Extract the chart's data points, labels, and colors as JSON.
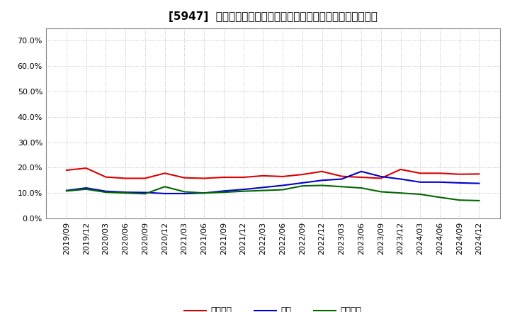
{
  "title": "[5947]  売上債権、在庫、買入債務の総資産に対する比率の推移",
  "x_labels": [
    "2019/09",
    "2019/12",
    "2020/03",
    "2020/06",
    "2020/09",
    "2020/12",
    "2021/03",
    "2021/06",
    "2021/09",
    "2021/12",
    "2022/03",
    "2022/06",
    "2022/09",
    "2022/12",
    "2023/03",
    "2023/06",
    "2023/09",
    "2023/12",
    "2024/03",
    "2024/06",
    "2024/09",
    "2024/12"
  ],
  "receivables": [
    0.19,
    0.198,
    0.163,
    0.158,
    0.158,
    0.178,
    0.16,
    0.158,
    0.162,
    0.162,
    0.168,
    0.165,
    0.173,
    0.185,
    0.166,
    0.162,
    0.158,
    0.193,
    0.178,
    0.178,
    0.174,
    0.175
  ],
  "inventory": [
    0.11,
    0.12,
    0.107,
    0.103,
    0.102,
    0.098,
    0.098,
    0.1,
    0.108,
    0.114,
    0.122,
    0.13,
    0.14,
    0.15,
    0.155,
    0.185,
    0.165,
    0.155,
    0.143,
    0.143,
    0.14,
    0.138
  ],
  "payables": [
    0.108,
    0.115,
    0.103,
    0.1,
    0.097,
    0.125,
    0.105,
    0.1,
    0.103,
    0.107,
    0.11,
    0.113,
    0.128,
    0.13,
    0.125,
    0.12,
    0.105,
    0.1,
    0.095,
    0.083,
    0.072,
    0.07
  ],
  "receivables_color": "#dd0000",
  "inventory_color": "#0000cc",
  "payables_color": "#006600",
  "ylim": [
    0.0,
    0.75
  ],
  "yticks": [
    0.0,
    0.1,
    0.2,
    0.3,
    0.4,
    0.5,
    0.6,
    0.7
  ],
  "legend_labels": [
    "売上債権",
    "在庫",
    "買入債務"
  ],
  "background_color": "#ffffff",
  "plot_bg_color": "#ffffff",
  "grid_color": "#aaaaaa",
  "line_width": 1.5,
  "title_fontsize": 11,
  "tick_fontsize": 8,
  "legend_fontsize": 9
}
